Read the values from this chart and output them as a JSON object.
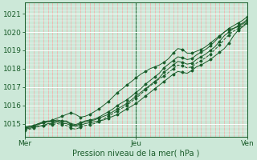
{
  "bg_color": "#cce8d8",
  "grid_color_white": "#ffffff",
  "grid_color_red": "#ff9999",
  "grid_color_darkgreen": "#2d6e3e",
  "line_color": "#1a5c2a",
  "marker_color": "#1a5c2a",
  "ylabel_ticks": [
    1015,
    1016,
    1017,
    1018,
    1019,
    1020,
    1021
  ],
  "ylim": [
    1014.3,
    1021.6
  ],
  "xlim": [
    0,
    48
  ],
  "xtick_positions": [
    0,
    24,
    48
  ],
  "xtick_labels": [
    "Mer",
    "Jeu",
    "Ven"
  ],
  "xlabel": "Pression niveau de la mer( hPa )",
  "series": [
    [
      1014.7,
      1014.75,
      1014.8,
      1014.85,
      1014.9,
      1015.0,
      1015.0,
      1015.1,
      1015.0,
      1015.0,
      1014.9,
      1014.85,
      1014.9,
      1015.0,
      1015.05,
      1015.1,
      1015.15,
      1015.2,
      1015.3,
      1015.4,
      1015.5,
      1015.65,
      1015.8,
      1015.95,
      1016.1,
      1016.3,
      1016.5,
      1016.7,
      1016.9,
      1017.1,
      1017.3,
      1017.5,
      1017.7,
      1017.85,
      1017.8,
      1017.75,
      1017.9,
      1018.1,
      1018.2,
      1018.35,
      1018.5,
      1018.7,
      1018.9,
      1019.1,
      1019.4,
      1019.8,
      1020.1,
      1020.3,
      1020.5
    ],
    [
      1014.8,
      1014.85,
      1014.9,
      1015.0,
      1015.05,
      1015.1,
      1015.1,
      1015.15,
      1015.1,
      1015.1,
      1014.95,
      1014.9,
      1015.0,
      1015.1,
      1015.15,
      1015.2,
      1015.3,
      1015.4,
      1015.5,
      1015.65,
      1015.8,
      1015.95,
      1016.1,
      1016.3,
      1016.5,
      1016.7,
      1016.9,
      1017.1,
      1017.3,
      1017.5,
      1017.8,
      1018.0,
      1018.2,
      1018.4,
      1018.35,
      1018.25,
      1018.3,
      1018.5,
      1018.65,
      1018.8,
      1019.0,
      1019.2,
      1019.5,
      1019.8,
      1020.0,
      1020.2,
      1020.35,
      1020.5,
      1020.7
    ],
    [
      1014.8,
      1014.85,
      1014.9,
      1015.0,
      1015.1,
      1015.15,
      1015.15,
      1015.2,
      1015.15,
      1015.15,
      1015.0,
      1014.95,
      1015.05,
      1015.15,
      1015.2,
      1015.25,
      1015.35,
      1015.5,
      1015.65,
      1015.8,
      1016.0,
      1016.15,
      1016.3,
      1016.5,
      1016.7,
      1016.9,
      1017.15,
      1017.35,
      1017.55,
      1017.75,
      1018.05,
      1018.25,
      1018.45,
      1018.65,
      1018.6,
      1018.5,
      1018.55,
      1018.75,
      1018.9,
      1019.05,
      1019.25,
      1019.5,
      1019.75,
      1020.0,
      1020.2,
      1020.35,
      1020.5,
      1020.65,
      1020.85
    ],
    [
      1014.65,
      1014.7,
      1014.75,
      1014.85,
      1014.9,
      1014.95,
      1014.95,
      1015.0,
      1014.95,
      1014.9,
      1014.75,
      1014.7,
      1014.8,
      1014.9,
      1014.95,
      1015.0,
      1015.1,
      1015.25,
      1015.4,
      1015.55,
      1015.7,
      1015.85,
      1016.0,
      1016.2,
      1016.4,
      1016.6,
      1016.85,
      1017.05,
      1017.25,
      1017.45,
      1017.6,
      1017.8,
      1018.0,
      1018.2,
      1018.15,
      1018.05,
      1018.1,
      1018.3,
      1018.45,
      1018.6,
      1018.8,
      1019.05,
      1019.3,
      1019.6,
      1019.85,
      1020.05,
      1020.2,
      1020.35,
      1020.55
    ],
    [
      1014.75,
      1014.8,
      1014.85,
      1014.95,
      1015.05,
      1015.1,
      1015.2,
      1015.3,
      1015.4,
      1015.5,
      1015.6,
      1015.5,
      1015.35,
      1015.4,
      1015.5,
      1015.65,
      1015.8,
      1016.0,
      1016.2,
      1016.45,
      1016.7,
      1016.9,
      1017.1,
      1017.3,
      1017.5,
      1017.7,
      1017.85,
      1018.0,
      1018.1,
      1018.2,
      1018.35,
      1018.55,
      1018.85,
      1019.1,
      1019.05,
      1018.85,
      1018.85,
      1018.95,
      1019.05,
      1019.2,
      1019.4,
      1019.6,
      1019.8,
      1020.0,
      1020.15,
      1020.2,
      1020.3,
      1020.45,
      1020.6
    ]
  ]
}
